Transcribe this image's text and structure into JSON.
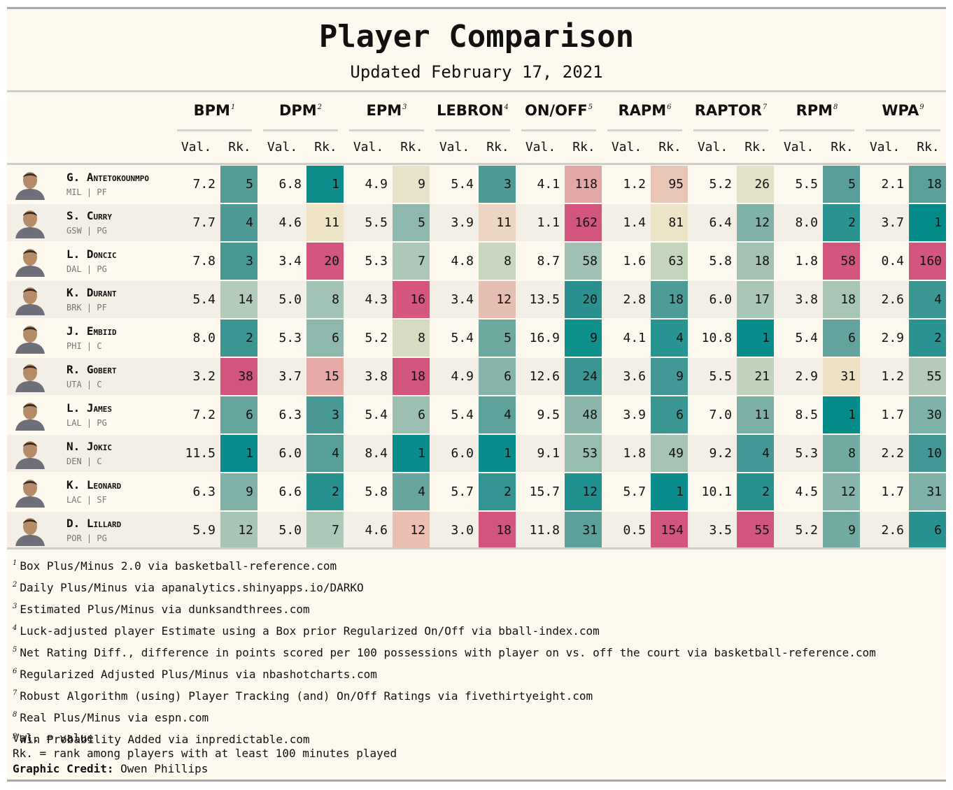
{
  "title": "Player Comparison",
  "subtitle": "Updated February 17, 2021",
  "metrics": [
    {
      "name": "BPM",
      "sup": "1"
    },
    {
      "name": "DPM",
      "sup": "2"
    },
    {
      "name": "EPM",
      "sup": "3"
    },
    {
      "name": "LEBRON",
      "sup": "4"
    },
    {
      "name": "ON/OFF",
      "sup": "5"
    },
    {
      "name": "RAPM",
      "sup": "6"
    },
    {
      "name": "RAPTOR",
      "sup": "7"
    },
    {
      "name": "RPM",
      "sup": "8"
    },
    {
      "name": "WPA",
      "sup": "9"
    }
  ],
  "val_label": "Val.",
  "rk_label": "Rk.",
  "chart_data": {
    "type": "table",
    "title": "Player Comparison",
    "subtitle": "Updated February 17, 2021",
    "color_scale": {
      "best": "#008c8c",
      "mid": "#ede5c7",
      "worst": "#d1557c"
    },
    "columns": [
      "BPM",
      "DPM",
      "EPM",
      "LEBRON",
      "ON/OFF",
      "RAPM",
      "RAPTOR",
      "RPM",
      "WPA"
    ],
    "players": [
      {
        "initial": "G.",
        "last": "Antetokounmpo",
        "team": "MIL",
        "pos": "PF",
        "vals": [
          "7.2",
          "6.8",
          "4.9",
          "5.4",
          "4.1",
          "1.2",
          "5.2",
          "5.5",
          "2.1"
        ],
        "ranks": [
          5,
          1,
          9,
          3,
          118,
          95,
          26,
          5,
          18
        ],
        "colors": [
          "#569d98",
          "#0f8c8c",
          "#e8e2c8",
          "#4d9a96",
          "#e3a8a5",
          "#e9c5b5",
          "#e3e1c7",
          "#589d99",
          "#5c9e9a"
        ]
      },
      {
        "initial": "S.",
        "last": "Curry",
        "team": "GSW",
        "pos": "PG",
        "vals": [
          "7.7",
          "4.6",
          "5.5",
          "3.9",
          "1.1",
          "1.4",
          "6.4",
          "8.0",
          "3.7"
        ],
        "ranks": [
          4,
          11,
          5,
          11,
          162,
          81,
          12,
          2,
          1
        ],
        "colors": [
          "#4e9a97",
          "#f0e4c6",
          "#8eb8ae",
          "#ecd6c1",
          "#d1557c",
          "#ede3c6",
          "#81b2a9",
          "#2a9290",
          "#058a8a"
        ]
      },
      {
        "initial": "L.",
        "last": "Doncic",
        "team": "DAL",
        "pos": "PG",
        "vals": [
          "7.8",
          "3.4",
          "5.3",
          "4.8",
          "8.7",
          "1.6",
          "5.8",
          "1.8",
          "0.4"
        ],
        "ranks": [
          3,
          20,
          7,
          8,
          58,
          63,
          18,
          58,
          160
        ],
        "colors": [
          "#459894",
          "#d1557c",
          "#adc8b8",
          "#c8d6bd",
          "#a0c0b3",
          "#c5d5bc",
          "#a3c2b4",
          "#d1557c",
          "#d1557c"
        ]
      },
      {
        "initial": "K.",
        "last": "Durant",
        "team": "BRK",
        "pos": "PF",
        "vals": [
          "5.4",
          "5.0",
          "4.3",
          "3.4",
          "13.5",
          "2.8",
          "6.0",
          "3.8",
          "2.6"
        ],
        "ranks": [
          14,
          8,
          16,
          12,
          20,
          18,
          17,
          18,
          4
        ],
        "colors": [
          "#b3cbba",
          "#a1c2b4",
          "#d5577f",
          "#e7bfb2",
          "#2b9190",
          "#4f9b97",
          "#a9c6b6",
          "#a8c6b6",
          "#3b9693"
        ]
      },
      {
        "initial": "J.",
        "last": "Embiid",
        "team": "PHI",
        "pos": "C",
        "vals": [
          "8.0",
          "5.3",
          "5.2",
          "5.4",
          "16.9",
          "4.1",
          "10.8",
          "5.4",
          "2.9"
        ],
        "ranks": [
          2,
          6,
          8,
          5,
          9,
          4,
          1,
          6,
          2
        ],
        "colors": [
          "#3a9593",
          "#8eb8ae",
          "#d6dcc2",
          "#6ea99f",
          "#10908c",
          "#279491",
          "#0a8c8c",
          "#64a39d",
          "#2a9290"
        ]
      },
      {
        "initial": "R.",
        "last": "Gobert",
        "team": "UTA",
        "pos": "C",
        "vals": [
          "3.2",
          "3.7",
          "3.8",
          "4.9",
          "12.6",
          "3.6",
          "5.5",
          "2.9",
          "1.2"
        ],
        "ranks": [
          38,
          15,
          18,
          6,
          24,
          9,
          21,
          31,
          55
        ],
        "colors": [
          "#d1557c",
          "#e5aaa6",
          "#d1557c",
          "#87b5aa",
          "#3a9593",
          "#439895",
          "#c1d3bc",
          "#ede0c3",
          "#b4cbba"
        ]
      },
      {
        "initial": "L.",
        "last": "James",
        "team": "LAL",
        "pos": "PG",
        "vals": [
          "7.2",
          "6.3",
          "5.4",
          "5.4",
          "9.5",
          "3.9",
          "7.0",
          "8.5",
          "1.7"
        ],
        "ranks": [
          6,
          3,
          6,
          4,
          48,
          6,
          11,
          1,
          30
        ],
        "colors": [
          "#66a49e",
          "#4b9996",
          "#9cbfb2",
          "#5ea19b",
          "#8bb7ad",
          "#3a9693",
          "#7cb0a7",
          "#068b8b",
          "#7eb1a8"
        ]
      },
      {
        "initial": "N.",
        "last": "Jokic",
        "team": "DEN",
        "pos": "C",
        "vals": [
          "11.5",
          "6.0",
          "8.4",
          "6.0",
          "9.1",
          "1.8",
          "9.2",
          "5.3",
          "2.2"
        ],
        "ranks": [
          1,
          4,
          1,
          1,
          53,
          49,
          4,
          8,
          10
        ],
        "colors": [
          "#088d8c",
          "#579e99",
          "#0a8c8c",
          "#0b8c8c",
          "#97bdb1",
          "#a5c4b5",
          "#439895",
          "#72aaa2",
          "#429794"
        ]
      },
      {
        "initial": "K.",
        "last": "Leonard",
        "team": "LAC",
        "pos": "SF",
        "vals": [
          "6.3",
          "6.6",
          "5.8",
          "5.7",
          "15.7",
          "5.7",
          "10.1",
          "4.5",
          "1.7"
        ],
        "ranks": [
          9,
          2,
          4,
          2,
          12,
          1,
          2,
          12,
          31
        ],
        "colors": [
          "#80b1a8",
          "#289290",
          "#68a59e",
          "#349492",
          "#1f9190",
          "#0a8c8c",
          "#289290",
          "#87b5ab",
          "#7fb1a8"
        ]
      },
      {
        "initial": "D.",
        "last": "Lillard",
        "team": "POR",
        "pos": "PG",
        "vals": [
          "5.9",
          "5.0",
          "4.6",
          "3.0",
          "11.8",
          "0.5",
          "3.5",
          "5.2",
          "2.6"
        ],
        "ranks": [
          12,
          7,
          12,
          18,
          31,
          154,
          55,
          9,
          6
        ],
        "colors": [
          "#a6c5b5",
          "#acc8b8",
          "#ebc0b2",
          "#d1557c",
          "#5c9f9b",
          "#d1557c",
          "#d1557c",
          "#72aaa2",
          "#289290"
        ]
      }
    ]
  },
  "footnotes": [
    {
      "sup": "1",
      "text": "Box Plus/Minus 2.0 via basketball-reference.com"
    },
    {
      "sup": "2",
      "text": "Daily Plus/Minus via apanalytics.shinyapps.io/DARKO"
    },
    {
      "sup": "3",
      "text": "Estimated Plus/Minus via dunksandthrees.com"
    },
    {
      "sup": "4",
      "text": "Luck-adjusted player Estimate using a Box prior Regularized On/Off via bball-index.com"
    },
    {
      "sup": "5",
      "text": "Net Rating Diff., difference in points scored per 100 possessions with player on vs. off the court via basketball-reference.com"
    },
    {
      "sup": "6",
      "text": "Regularized Adjusted Plus/Minus via nbashotcharts.com"
    },
    {
      "sup": "7",
      "text": "Robust Algorithm (using) Player Tracking (and) On/Off Ratings via fivethirtyeight.com"
    },
    {
      "sup": "8",
      "text": "Real Plus/Minus via espn.com"
    },
    {
      "sup": "9",
      "text": "Win Probability Added via inpredictable.com"
    }
  ],
  "legend": {
    "val": "Val. = value",
    "rk": "Rk. = rank among players with at least 100 minutes played",
    "credit_label": "Graphic Credit:",
    "credit_name": "Owen Phillips"
  }
}
